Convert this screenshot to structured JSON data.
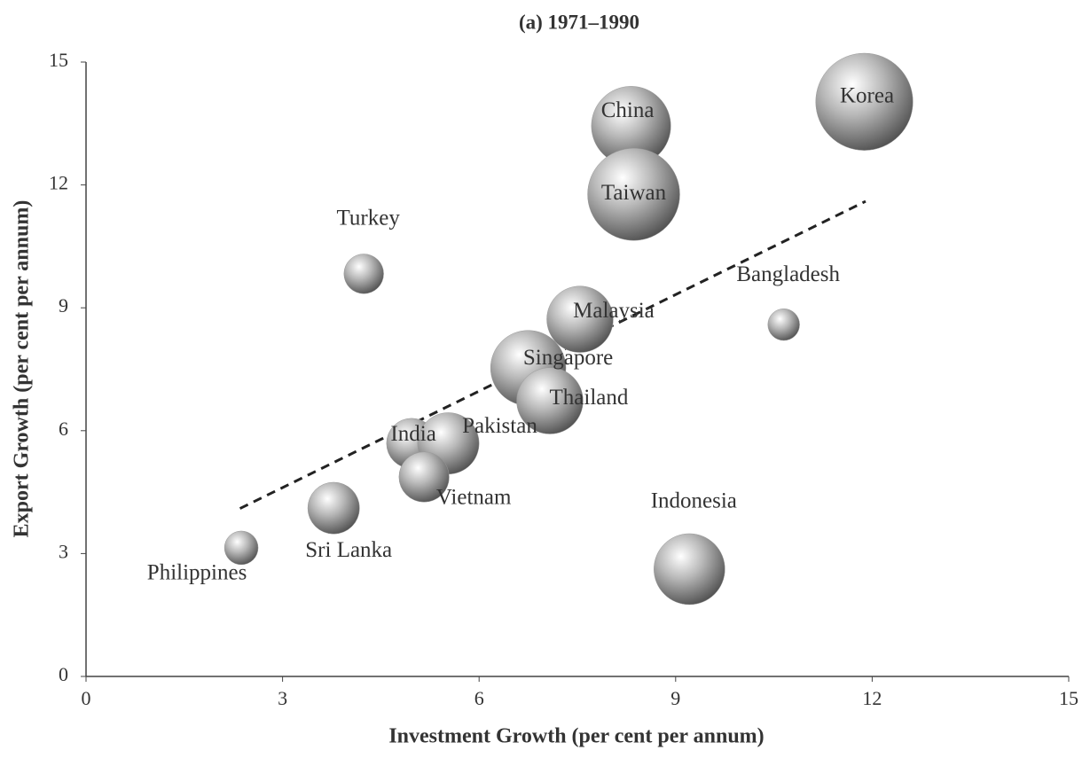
{
  "chart_data": {
    "type": "scatter",
    "title": "(a) 1971–1990",
    "x_label": "Investment Growth (per cent per annum)",
    "y_label": "Export Growth (per cent per annum)",
    "series": [
      {
        "names": [
          "Korea",
          "China",
          "Taiwan",
          "Turkey",
          "Bangladesh",
          "Malaysia",
          "Singapore",
          "Thailand",
          "India",
          "Pakistan",
          "Vietnam",
          "Sri Lanka",
          "Philippines",
          "Indonesia"
        ],
        "x": [
          11.88,
          8.32,
          8.36,
          4.24,
          10.65,
          7.54,
          6.75,
          7.08,
          4.97,
          5.53,
          5.16,
          3.78,
          2.37,
          9.21
        ],
        "values": [
          14.03,
          13.44,
          11.77,
          9.83,
          8.59,
          8.72,
          7.53,
          6.73,
          5.69,
          5.69,
          4.87,
          4.11,
          3.14,
          2.62
        ],
        "sizes": [
          30,
          20,
          27,
          5,
          3.2,
          14,
          18,
          14,
          8,
          12,
          8,
          8.5,
          3.6,
          16
        ],
        "color": "#9a9a9a"
      }
    ],
    "trendline": {
      "x": [
        2.35,
        11.9
      ],
      "y": [
        4.1,
        11.6
      ],
      "color": "#222222"
    },
    "xlim": [
      0,
      15
    ],
    "xticks": [
      0,
      3,
      6,
      9,
      12,
      15
    ],
    "ylim": [
      0,
      15
    ],
    "yticks": [
      0,
      3,
      6,
      9,
      12,
      15
    ]
  }
}
